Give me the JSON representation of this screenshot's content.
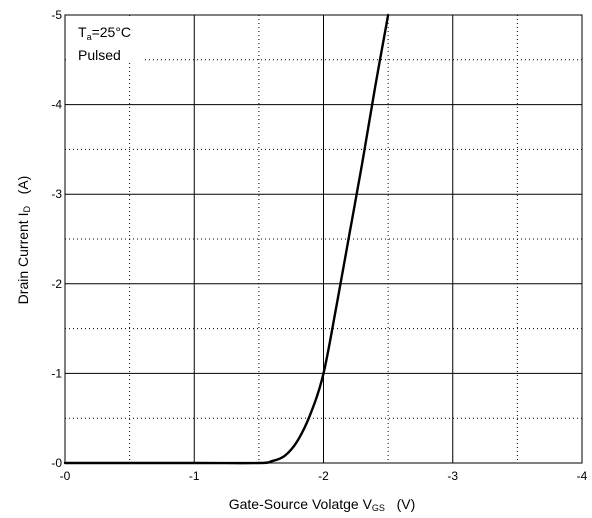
{
  "chart_data": {
    "type": "line",
    "title": "",
    "xlabel": {
      "main": "Gate-Source Volatge   V",
      "sub": "GS",
      "unit": "   (V)"
    },
    "ylabel": {
      "main": "Drain Current   I",
      "sub": "D",
      "unit": "   (A)"
    },
    "xlim": [
      0,
      -4
    ],
    "ylim": [
      0,
      -5
    ],
    "x_ticks": [
      0,
      -1,
      -2,
      -3,
      -4
    ],
    "x_tick_labels": [
      "-0",
      "-1",
      "-2",
      "-3",
      "-4"
    ],
    "y_ticks": [
      0,
      -1,
      -2,
      -3,
      -4,
      -5
    ],
    "y_tick_labels": [
      "-0",
      "-1",
      "-2",
      "-3",
      "-4",
      "-5"
    ],
    "grid": "solid major, dotted minor",
    "annotations": {
      "ta_main": "T",
      "ta_sub": "a",
      "ta_rest": "=25°C",
      "pulsed": "Pulsed"
    },
    "series": [
      {
        "x": [
          0,
          -1.0,
          -1.5,
          -1.6,
          -1.7,
          -1.8,
          -1.9,
          -2.0,
          -2.1,
          -2.2,
          -2.3,
          -2.4,
          -2.5
        ],
        "y": [
          0,
          0,
          0,
          -0.02,
          -0.08,
          -0.25,
          -0.55,
          -1.0,
          -1.75,
          -2.55,
          -3.35,
          -4.2,
          -5.0
        ]
      }
    ]
  }
}
